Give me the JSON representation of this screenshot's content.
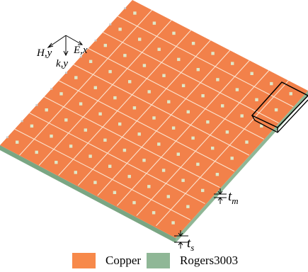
{
  "axes": {
    "h_label": "H,y",
    "e_label": "E,x",
    "k_label": "k,y"
  },
  "dimensions": {
    "tm_base": "t",
    "tm_sub": "m",
    "ts_base": "t",
    "ts_sub": "s"
  },
  "legend": {
    "items": [
      {
        "name": "copper-legend",
        "label": "Copper",
        "color": "#f7894a"
      },
      {
        "name": "rogers-legend",
        "label": "Rogers3003",
        "color": "#8fb796"
      }
    ]
  },
  "materials": {
    "copper_color": "#f2814a",
    "copper_edge": "#fbe3cf",
    "substrate_color": "#8fb796",
    "substrate_side": "#7aa683",
    "square_color": "#dfe8c8"
  }
}
